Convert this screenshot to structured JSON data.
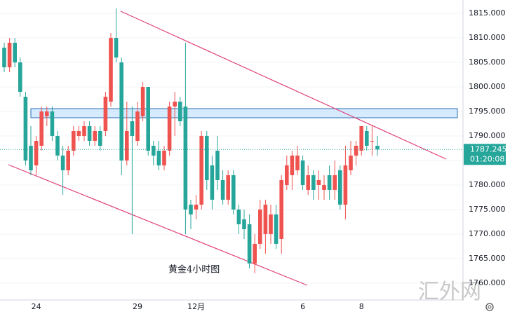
{
  "chart_data": {
    "type": "candlestick",
    "annotation": "黄金4小时图",
    "watermark": "汇外网",
    "last_price": 1787.245,
    "countdown": "01:20:08",
    "up_color": "#ef5350",
    "down_color": "#26a69a",
    "ylim": [
      1756.56,
      1817.72
    ],
    "yticks": [
      {
        "value": 1760,
        "label": "1760.000"
      },
      {
        "value": 1765,
        "label": "1765.000"
      },
      {
        "value": 1770,
        "label": "1770.000"
      },
      {
        "value": 1775,
        "label": "1775.000"
      },
      {
        "value": 1780,
        "label": "1780.000"
      },
      {
        "value": 1785,
        "label": "1785.000"
      },
      {
        "value": 1790,
        "label": "1790.000"
      },
      {
        "value": 1795,
        "label": "1795.000"
      },
      {
        "value": 1800,
        "label": "1800.000"
      },
      {
        "value": 1805,
        "label": "1805.000"
      },
      {
        "value": 1810,
        "label": "1810.000"
      },
      {
        "value": 1815,
        "label": "1815.000"
      }
    ],
    "categories": [
      null,
      null,
      null,
      null,
      null,
      null,
      "24",
      null,
      null,
      null,
      null,
      null,
      null,
      null,
      null,
      null,
      null,
      null,
      null,
      null,
      null,
      null,
      null,
      null,
      null,
      "29",
      null,
      null,
      null,
      null,
      null,
      null,
      null,
      null,
      null,
      null,
      "12月",
      null,
      null,
      null,
      null,
      null,
      null,
      null,
      null,
      null,
      null,
      null,
      null,
      null,
      null,
      null,
      null,
      null,
      null,
      null,
      "6",
      null,
      null,
      null,
      null,
      null,
      null,
      null,
      null,
      null,
      null,
      "8",
      null,
      null,
      null
    ],
    "open": [
      1808,
      1804,
      1809,
      1805,
      1798,
      1788,
      1784,
      1788,
      1794,
      1795,
      1790,
      1786,
      1783,
      1787,
      1790,
      1790,
      1792,
      1789,
      1791,
      1791,
      1797,
      1810,
      1805,
      1785,
      1793,
      1789,
      1794,
      1800,
      1788,
      1787,
      1784,
      1787,
      1796,
      1797,
      1796,
      1776,
      1775,
      1776,
      1790,
      1784,
      1787,
      1781,
      1777,
      1782,
      1775,
      1773,
      1772,
      1764,
      1768,
      1770,
      1770,
      1774,
      1769,
      1780,
      1782,
      1783,
      1785,
      1779,
      1782,
      1780,
      1779,
      1782,
      1779,
      1783,
      1776,
      1783,
      1786,
      1787,
      1791,
      1789,
      1788
    ],
    "high": [
      1809,
      1810,
      1810,
      1806,
      1799,
      1792,
      1790,
      1796,
      1796,
      1796,
      1791,
      1788,
      1788,
      1792,
      1792,
      1793,
      1793,
      1792,
      1792,
      1799,
      1811,
      1816,
      1806,
      1797,
      1796,
      1797,
      1801,
      1800,
      1789,
      1789,
      1788,
      1797,
      1799,
      1798,
      1809,
      1777,
      1778,
      1791,
      1791,
      1786,
      1790,
      1783,
      1783,
      1783,
      1776,
      1775,
      1774,
      1770,
      1777,
      1777,
      1776,
      1776,
      1782,
      1786,
      1787,
      1788,
      1786,
      1784,
      1783,
      1783,
      1782,
      1784,
      1785,
      1784,
      1788,
      1789,
      1789,
      1792,
      1792,
      1792,
      1790
    ],
    "low": [
      1803,
      1803,
      1804,
      1798,
      1784,
      1782,
      1782,
      1787,
      1792,
      1789,
      1785,
      1778,
      1782,
      1786,
      1789,
      1789,
      1788,
      1788,
      1787,
      1790,
      1796,
      1805,
      1782,
      1784,
      1770,
      1788,
      1793,
      1786,
      1784,
      1783,
      1783,
      1786,
      1790,
      1792,
      1770,
      1771,
      1773,
      1775,
      1779,
      1775,
      1779,
      1776,
      1776,
      1774,
      1770,
      1769,
      1763,
      1762,
      1767,
      1766,
      1768,
      1767,
      1766,
      1779,
      1779,
      1782,
      1779,
      1778,
      1777,
      1777,
      1777,
      1777,
      1777,
      1775,
      1773,
      1782,
      1784,
      1786,
      1787,
      1786,
      1786
    ],
    "close": [
      1804,
      1809,
      1805,
      1799,
      1785,
      1783,
      1789,
      1795,
      1795,
      1790,
      1786,
      1783,
      1787,
      1791,
      1791,
      1792,
      1789,
      1791,
      1788,
      1798,
      1810,
      1806,
      1785,
      1791,
      1790,
      1795,
      1800,
      1787,
      1786,
      1784,
      1787,
      1796,
      1797,
      1793,
      1775,
      1774,
      1776,
      1790,
      1781,
      1777,
      1781,
      1777,
      1782,
      1775,
      1772,
      1771,
      1764,
      1768,
      1775,
      1776,
      1774,
      1768,
      1781,
      1784,
      1786,
      1786,
      1780,
      1782,
      1779,
      1781,
      1780,
      1779,
      1782,
      1776,
      1784,
      1786,
      1788,
      1792,
      1788,
      1789,
      1787.245
    ]
  }
}
